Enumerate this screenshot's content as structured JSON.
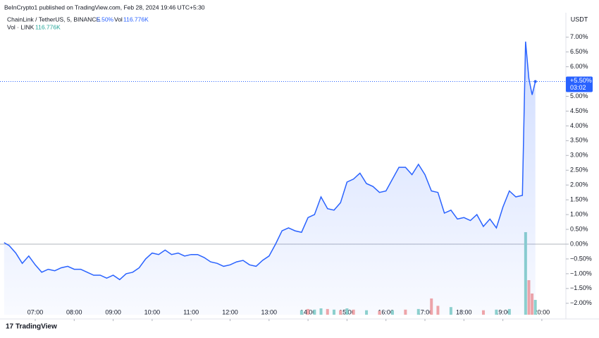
{
  "header": {
    "published": "BeInCrypto1 published on TradingView.com, Feb 28, 2024 19:46 UTC+5:30",
    "symbol": "ChainLink / TetherUS, 5, BINANCE",
    "change": "5.50%",
    "vol_key": "Vol",
    "vol_value": "116.776K",
    "vol_legend": "Vol · LINK",
    "vol_legend_value": "116.776K",
    "currency": "USDT",
    "brand": "TradingView"
  },
  "chart_data": {
    "type": "area",
    "color": "#2962ff",
    "x": [
      6.2,
      6.333,
      6.5,
      6.667,
      6.833,
      7,
      7.167,
      7.333,
      7.5,
      7.667,
      7.833,
      8,
      8.167,
      8.333,
      8.5,
      8.667,
      8.833,
      9,
      9.167,
      9.333,
      9.5,
      9.667,
      9.833,
      10,
      10.167,
      10.333,
      10.5,
      10.667,
      10.833,
      11,
      11.167,
      11.333,
      11.5,
      11.667,
      11.833,
      12,
      12.167,
      12.333,
      12.5,
      12.667,
      12.833,
      13,
      13.167,
      13.333,
      13.5,
      13.667,
      13.833,
      14,
      14.167,
      14.333,
      14.5,
      14.667,
      14.833,
      15,
      15.167,
      15.333,
      15.5,
      15.667,
      15.833,
      16,
      16.167,
      16.333,
      16.5,
      16.667,
      16.833,
      17,
      17.167,
      17.333,
      17.5,
      17.667,
      17.833,
      18,
      18.167,
      18.333,
      18.5,
      18.667,
      18.833,
      19,
      19.167,
      19.333,
      19.5,
      19.583,
      19.667,
      19.75,
      19.833
    ],
    "series": [
      {
        "name": "ChainLink / TetherUS",
        "color": "#2962ff",
        "values": [
          0.05,
          -0.05,
          -0.3,
          -0.65,
          -0.4,
          -0.7,
          -0.95,
          -0.85,
          -0.9,
          -0.8,
          -0.75,
          -0.85,
          -0.85,
          -0.95,
          -1.05,
          -1.05,
          -1.15,
          -1.05,
          -1.2,
          -1.0,
          -0.95,
          -0.8,
          -0.5,
          -0.3,
          -0.35,
          -0.2,
          -0.35,
          -0.3,
          -0.4,
          -0.35,
          -0.35,
          -0.45,
          -0.6,
          -0.65,
          -0.75,
          -0.7,
          -0.6,
          -0.55,
          -0.7,
          -0.75,
          -0.55,
          -0.4,
          0.0,
          0.45,
          0.55,
          0.45,
          0.4,
          0.9,
          1.0,
          1.6,
          1.2,
          1.15,
          1.4,
          2.1,
          2.2,
          2.4,
          2.05,
          1.95,
          1.75,
          1.8,
          2.2,
          2.6,
          2.6,
          2.35,
          2.7,
          2.35,
          1.8,
          1.75,
          1.05,
          1.15,
          0.85,
          0.9,
          0.8,
          1.0,
          0.6,
          0.85,
          0.55,
          1.25,
          1.8,
          1.6,
          1.65,
          6.85,
          5.6,
          5.05,
          5.5
        ]
      }
    ],
    "last_label": {
      "value": 5.5,
      "label": "+5.50%"
    },
    "countdown": "03:02",
    "xlim": [
      6.2,
      20.5
    ],
    "xticks": [
      {
        "value": 7,
        "label": "07:00"
      },
      {
        "value": 8,
        "label": "08:00"
      },
      {
        "value": 9,
        "label": "09:00"
      },
      {
        "value": 10,
        "label": "10:00"
      },
      {
        "value": 11,
        "label": "11:00"
      },
      {
        "value": 12,
        "label": "12:00"
      },
      {
        "value": 13,
        "label": "13:00"
      },
      {
        "value": 14,
        "label": "14:00"
      },
      {
        "value": 15,
        "label": "15:00"
      },
      {
        "value": 16,
        "label": "16:00"
      },
      {
        "value": 17,
        "label": "17:00"
      },
      {
        "value": 18,
        "label": "18:00"
      },
      {
        "value": 19,
        "label": "19:00"
      },
      {
        "value": 20,
        "label": "20:00"
      }
    ],
    "ylim": [
      -2.2,
      7.8
    ],
    "yticks": [
      {
        "value": 7,
        "label": "7.00%"
      },
      {
        "value": 6.5,
        "label": "6.50%"
      },
      {
        "value": 6,
        "label": "6.00%"
      },
      {
        "value": 5,
        "label": "5.00%"
      },
      {
        "value": 4.5,
        "label": "4.50%"
      },
      {
        "value": 4,
        "label": "4.00%"
      },
      {
        "value": 3.5,
        "label": "3.50%"
      },
      {
        "value": 3,
        "label": "3.00%"
      },
      {
        "value": 2.5,
        "label": "2.50%"
      },
      {
        "value": 2,
        "label": "2.00%"
      },
      {
        "value": 1.5,
        "label": "1.50%"
      },
      {
        "value": 1,
        "label": "1.00%"
      },
      {
        "value": 0.5,
        "label": "0.50%"
      },
      {
        "value": 0,
        "label": "0.00%"
      },
      {
        "value": -0.5,
        "label": "−0.50%"
      },
      {
        "value": -1,
        "label": "−1.00%"
      },
      {
        "value": -1.5,
        "label": "−1.50%"
      },
      {
        "value": -2,
        "label": "−2.00%"
      }
    ],
    "volume": {
      "x": [
        13.833,
        14,
        14.167,
        14.333,
        14.5,
        14.667,
        14.833,
        15,
        15.167,
        15.5,
        15.833,
        16.167,
        16.5,
        16.833,
        17.167,
        17.333,
        17.667,
        18.5,
        18.833,
        19.167,
        19.583,
        19.667,
        19.75,
        19.833
      ],
      "values": [
        35,
        45,
        40,
        50,
        45,
        40,
        35,
        50,
        40,
        35,
        30,
        35,
        40,
        45,
        128,
        70,
        60,
        35,
        40,
        45,
        650,
        272,
        167,
        116.776
      ],
      "colors": [
        "#8fd3cc",
        "#f4a6a6",
        "#8fd3cc",
        "#8fd3cc",
        "#f4a6a6",
        "#8fd3cc",
        "#f4a6a6",
        "#8fd3cc",
        "#f4a6a6",
        "#8fd3cc",
        "#f4a6a6",
        "#8fd3cc",
        "#f4a6a6",
        "#8fd3cc",
        "#f4a6a6",
        "#f4a6a6",
        "#8fd3cc",
        "#f4a6a6",
        "#8fd3cc",
        "#8fd3cc",
        "#8fd3cc",
        "#f4a6a6",
        "#f4a6a6",
        "#8fd3cc"
      ]
    }
  }
}
